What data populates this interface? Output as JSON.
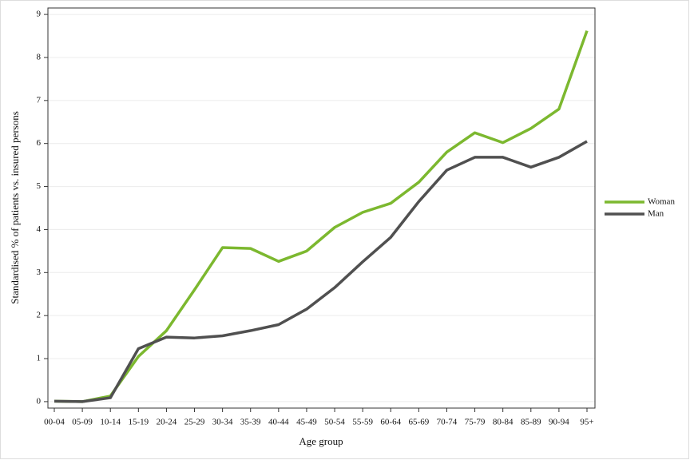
{
  "chart_data": {
    "type": "line",
    "x_label": "Age group",
    "y_label": "Standardised % of patients vs. insured persons",
    "categories": [
      "00-04",
      "05-09",
      "10-14",
      "15-19",
      "20-24",
      "25-29",
      "30-34",
      "35-39",
      "40-44",
      "45-49",
      "50-54",
      "55-59",
      "60-64",
      "65-69",
      "70-74",
      "75-79",
      "80-84",
      "85-89",
      "90-94",
      "95+"
    ],
    "series": [
      {
        "name": "Woman",
        "color": "#7cb82f",
        "values": [
          0.01,
          0.0,
          0.13,
          1.05,
          1.65,
          2.6,
          3.58,
          3.56,
          3.26,
          3.5,
          4.05,
          4.4,
          4.61,
          5.1,
          5.8,
          6.25,
          6.02,
          6.35,
          6.8,
          8.62
        ]
      },
      {
        "name": "Man",
        "color": "#505050",
        "values": [
          0.01,
          0.0,
          0.09,
          1.23,
          1.5,
          1.48,
          1.53,
          1.65,
          1.79,
          2.15,
          2.65,
          3.25,
          3.82,
          4.65,
          5.38,
          5.68,
          5.68,
          5.45,
          5.68,
          6.05
        ]
      }
    ],
    "ylim": [
      -0.15,
      9.15
    ],
    "yticks": [
      0,
      1,
      2,
      3,
      4,
      5,
      6,
      7,
      8,
      9
    ],
    "grid": true,
    "legend": "right"
  }
}
